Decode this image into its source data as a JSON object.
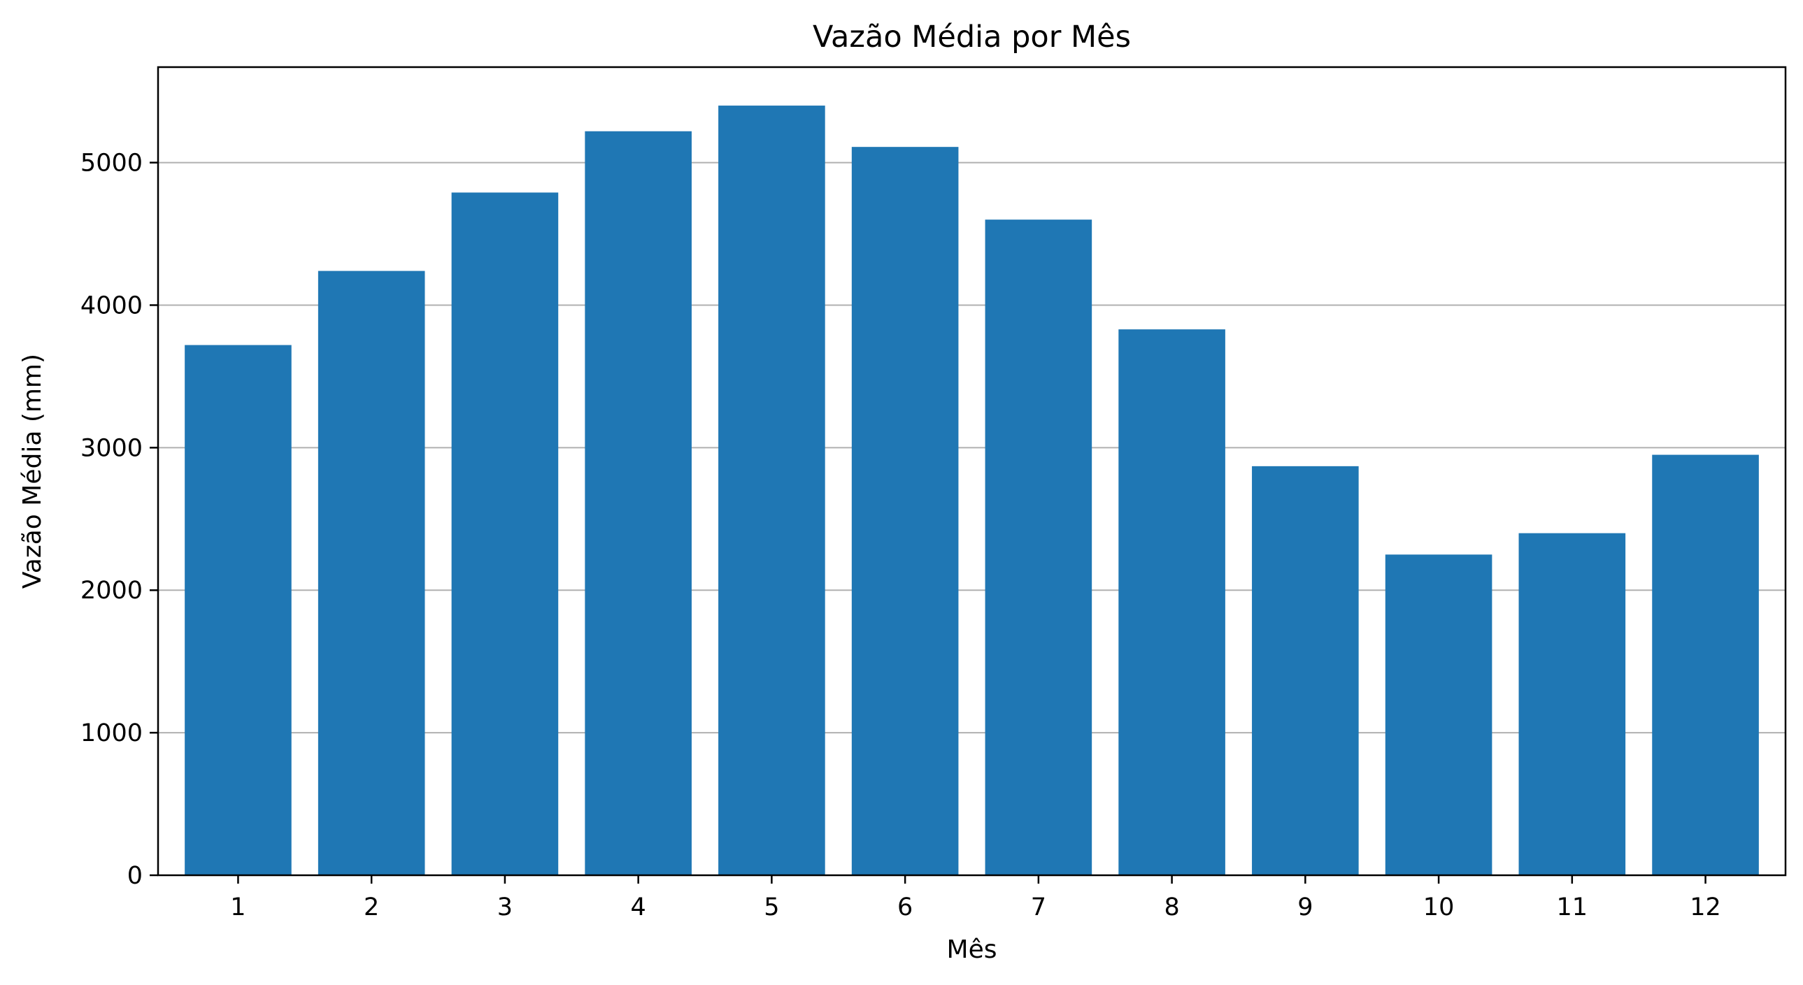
{
  "chart_data": {
    "type": "bar",
    "title": "Vazão Média por Mês",
    "xlabel": "Mês",
    "ylabel": "Vazão Média (mm)",
    "categories": [
      "1",
      "2",
      "3",
      "4",
      "5",
      "6",
      "7",
      "8",
      "9",
      "10",
      "11",
      "12"
    ],
    "values": [
      3720,
      4240,
      4790,
      5220,
      5400,
      5110,
      4600,
      3830,
      2870,
      2250,
      2400,
      2950
    ],
    "ylim": [
      0,
      5670
    ],
    "yticks": [
      "0",
      "1000",
      "2000",
      "3000",
      "4000",
      "5000"
    ],
    "grid": "horizontal",
    "bar_color": "#1f77b4",
    "grid_color": "#b0b0b0"
  }
}
